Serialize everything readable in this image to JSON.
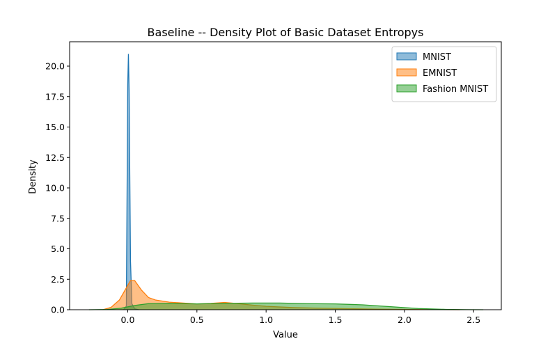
{
  "chart_data": {
    "type": "area",
    "title": "Baseline -- Density Plot of Basic Dataset Entropys",
    "xlabel": "Value",
    "ylabel": "Density",
    "xlim": [
      -0.42,
      2.7
    ],
    "ylim": [
      0,
      22.0
    ],
    "xticks": [
      0.0,
      0.5,
      1.0,
      1.5,
      2.0,
      2.5
    ],
    "yticks": [
      0.0,
      2.5,
      5.0,
      7.5,
      10.0,
      12.5,
      15.0,
      17.5,
      20.0
    ],
    "xtick_labels": [
      "0.0",
      "0.5",
      "1.0",
      "1.5",
      "2.0",
      "2.5"
    ],
    "ytick_labels": [
      "0.0",
      "2.5",
      "5.0",
      "7.5",
      "10.0",
      "12.5",
      "15.0",
      "17.5",
      "20.0"
    ],
    "grid": false,
    "legend_position": "top-right",
    "series": [
      {
        "name": "MNIST",
        "color": "#1f77b4",
        "points": [
          [
            -0.03,
            0.0
          ],
          [
            -0.01,
            0.3
          ],
          [
            0.0,
            18.5
          ],
          [
            0.005,
            21.0
          ],
          [
            0.01,
            18.0
          ],
          [
            0.02,
            4.0
          ],
          [
            0.03,
            0.5
          ],
          [
            0.05,
            0.08
          ],
          [
            0.08,
            0.0
          ]
        ]
      },
      {
        "name": "EMNIST",
        "color": "#ff7f0e",
        "points": [
          [
            -0.18,
            0.0
          ],
          [
            -0.12,
            0.2
          ],
          [
            -0.06,
            0.8
          ],
          [
            -0.02,
            1.6
          ],
          [
            0.02,
            2.4
          ],
          [
            0.05,
            2.4
          ],
          [
            0.1,
            1.6
          ],
          [
            0.15,
            1.0
          ],
          [
            0.2,
            0.8
          ],
          [
            0.3,
            0.62
          ],
          [
            0.4,
            0.55
          ],
          [
            0.5,
            0.48
          ],
          [
            0.6,
            0.52
          ],
          [
            0.7,
            0.6
          ],
          [
            0.8,
            0.5
          ],
          [
            0.9,
            0.38
          ],
          [
            1.0,
            0.28
          ],
          [
            1.2,
            0.18
          ],
          [
            1.4,
            0.12
          ],
          [
            1.6,
            0.08
          ],
          [
            1.8,
            0.05
          ],
          [
            2.0,
            0.03
          ],
          [
            2.2,
            0.01
          ],
          [
            2.4,
            0.0
          ]
        ]
      },
      {
        "name": "Fashion MNIST",
        "color": "#2ca02c",
        "points": [
          [
            -0.28,
            0.0
          ],
          [
            -0.15,
            0.02
          ],
          [
            -0.05,
            0.12
          ],
          [
            0.05,
            0.35
          ],
          [
            0.15,
            0.5
          ],
          [
            0.3,
            0.52
          ],
          [
            0.5,
            0.48
          ],
          [
            0.7,
            0.52
          ],
          [
            0.9,
            0.55
          ],
          [
            1.1,
            0.55
          ],
          [
            1.3,
            0.5
          ],
          [
            1.5,
            0.48
          ],
          [
            1.7,
            0.4
          ],
          [
            1.9,
            0.25
          ],
          [
            2.1,
            0.1
          ],
          [
            2.3,
            0.03
          ],
          [
            2.45,
            0.005
          ],
          [
            2.57,
            0.0
          ]
        ]
      }
    ]
  }
}
